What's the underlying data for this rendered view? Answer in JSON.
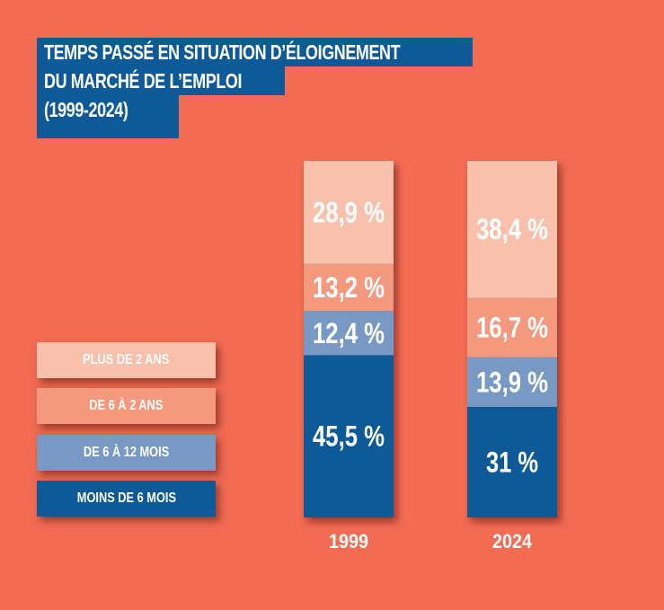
{
  "chart_data": {
    "type": "bar",
    "stacked": true,
    "title": "TEMPS PASSÉ EN SITUATION D’ÉLOIGNEMENT DU MARCHÉ DE L’EMPLOI (1999-2024)",
    "title_lines": [
      "TEMPS PASSÉ EN SITUATION D’ÉLOIGNEMENT",
      "DU MARCHÉ DE L’EMPLOI",
      "(1999-2024)"
    ],
    "categories": [
      "1999",
      "2024"
    ],
    "series": [
      {
        "name": "MOINS DE 6 MOIS",
        "color": "#0e5a98",
        "values": [
          45.5,
          31
        ],
        "labels": [
          "45,5 %",
          "31 %"
        ]
      },
      {
        "name": "DE 6 À 12 MOIS",
        "color": "#7799c4",
        "values": [
          12.4,
          13.9
        ],
        "labels": [
          "12,4 %",
          "13,9 %"
        ]
      },
      {
        "name": "DE 6 À 2 ANS",
        "color": "#f5997e",
        "values": [
          13.2,
          16.7
        ],
        "labels": [
          "13,2 %",
          "16,7 %"
        ]
      },
      {
        "name": "PLUS DE 2 ANS",
        "color": "#f9c1ab",
        "values": [
          28.9,
          38.4
        ],
        "labels": [
          "28,9 %",
          "38,4 %"
        ]
      }
    ],
    "legend_order": [
      "PLUS DE 2 ANS",
      "DE 6 À 2 ANS",
      "DE 6 À 12 MOIS",
      "MOINS DE 6 MOIS"
    ],
    "legend_placement": "left",
    "xlabel": "",
    "ylabel": "",
    "ylim": [
      0,
      100
    ],
    "grid": false
  },
  "colors": {
    "background": "#f26b52",
    "title_bg": "#0e5a98"
  }
}
